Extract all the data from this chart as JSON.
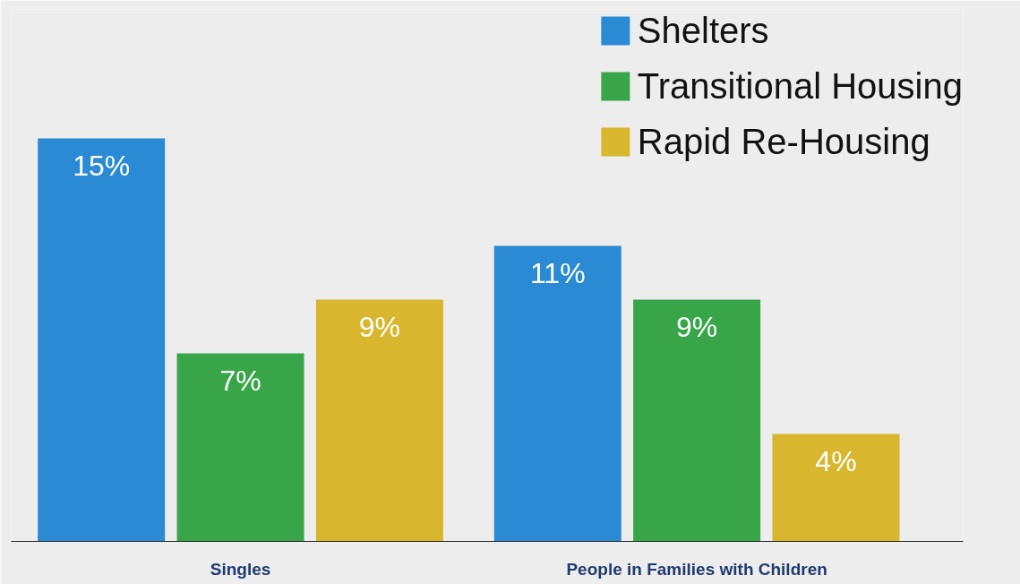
{
  "chart_data": {
    "type": "bar",
    "categories": [
      "Singles",
      "People in Families with Children"
    ],
    "series": [
      {
        "name": "Shelters",
        "color": "#2a8ad3",
        "values": [
          15,
          11
        ],
        "value_labels": [
          "15%",
          "11%"
        ]
      },
      {
        "name": "Transitional Housing",
        "color": "#37a548",
        "values": [
          7,
          9
        ],
        "value_labels": [
          "7%",
          "9%"
        ]
      },
      {
        "name": "Rapid Re-Housing",
        "color": "#d8b62e",
        "values": [
          9,
          4
        ],
        "value_labels": [
          "9%",
          "4%"
        ]
      }
    ],
    "legend": "top right",
    "grid": false,
    "tick_labels": "x"
  }
}
